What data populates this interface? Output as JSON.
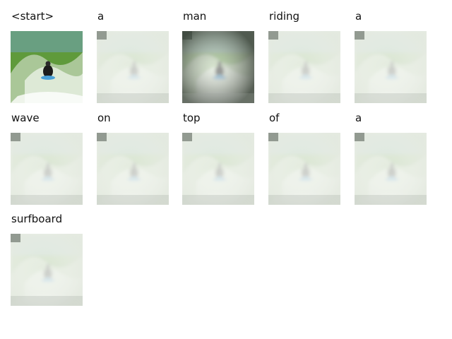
{
  "panels": [
    {
      "word": "<start>",
      "kind": "original"
    },
    {
      "word": "a",
      "kind": "attention"
    },
    {
      "word": "man",
      "kind": "attention-dark"
    },
    {
      "word": "riding",
      "kind": "attention"
    },
    {
      "word": "a",
      "kind": "attention"
    },
    {
      "word": "wave",
      "kind": "attention"
    },
    {
      "word": "on",
      "kind": "attention"
    },
    {
      "word": "top",
      "kind": "attention"
    },
    {
      "word": "of",
      "kind": "attention"
    },
    {
      "word": "a",
      "kind": "attention"
    },
    {
      "word": "surfboard",
      "kind": "attention"
    }
  ],
  "colors": {
    "water": "#5f9a3a",
    "foam": "#e8ece6",
    "overlay": "#e6ebe2",
    "dark_overlay": "#4a5248"
  }
}
